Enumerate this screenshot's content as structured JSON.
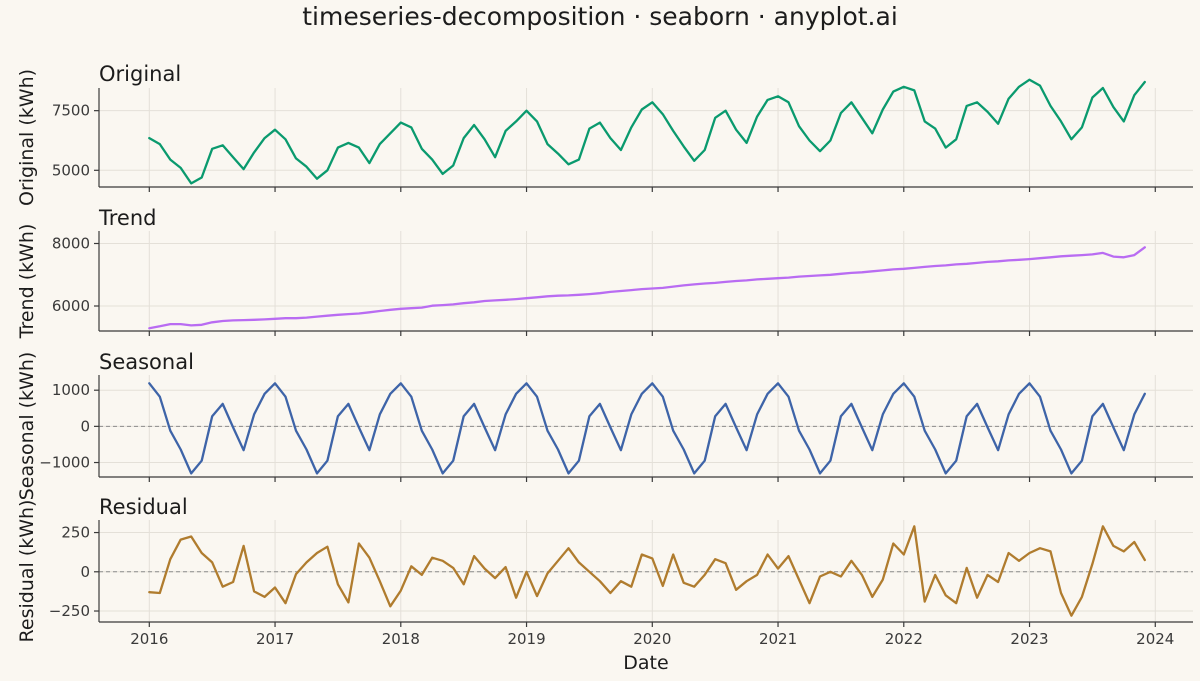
{
  "title": "timeseries-decomposition · seaborn · anyplot.ai",
  "chart_data": {
    "type": "line",
    "xlabel": "Date",
    "x": [
      "2016-01",
      "2016-02",
      "2016-03",
      "2016-04",
      "2016-05",
      "2016-06",
      "2016-07",
      "2016-08",
      "2016-09",
      "2016-10",
      "2016-11",
      "2016-12",
      "2017-01",
      "2017-02",
      "2017-03",
      "2017-04",
      "2017-05",
      "2017-06",
      "2017-07",
      "2017-08",
      "2017-09",
      "2017-10",
      "2017-11",
      "2017-12",
      "2018-01",
      "2018-02",
      "2018-03",
      "2018-04",
      "2018-05",
      "2018-06",
      "2018-07",
      "2018-08",
      "2018-09",
      "2018-10",
      "2018-11",
      "2018-12",
      "2019-01",
      "2019-02",
      "2019-03",
      "2019-04",
      "2019-05",
      "2019-06",
      "2019-07",
      "2019-08",
      "2019-09",
      "2019-10",
      "2019-11",
      "2019-12",
      "2020-01",
      "2020-02",
      "2020-03",
      "2020-04",
      "2020-05",
      "2020-06",
      "2020-07",
      "2020-08",
      "2020-09",
      "2020-10",
      "2020-11",
      "2020-12",
      "2021-01",
      "2021-02",
      "2021-03",
      "2021-04",
      "2021-05",
      "2021-06",
      "2021-07",
      "2021-08",
      "2021-09",
      "2021-10",
      "2021-11",
      "2021-12",
      "2022-01",
      "2022-02",
      "2022-03",
      "2022-04",
      "2022-05",
      "2022-06",
      "2022-07",
      "2022-08",
      "2022-09",
      "2022-10",
      "2022-11",
      "2022-12",
      "2023-01",
      "2023-02",
      "2023-03",
      "2023-04",
      "2023-05",
      "2023-06",
      "2023-07",
      "2023-08",
      "2023-09",
      "2023-10",
      "2023-11",
      "2023-12"
    ],
    "xticks": [
      "2016",
      "2017",
      "2018",
      "2019",
      "2020",
      "2021",
      "2022",
      "2023",
      "2024"
    ],
    "panels": [
      {
        "key": "original",
        "title": "Original",
        "ylabel": "Original (kWh)",
        "color": "#0a9a6e",
        "ylim": [
          4300,
          8450
        ],
        "yticks": [
          5000,
          7500
        ],
        "yticklabels": [
          "5000",
          "7500"
        ],
        "zero_line": false,
        "values": [
          6350,
          6100,
          5450,
          5100,
          4450,
          4700,
          5900,
          6050,
          5550,
          5050,
          5750,
          6350,
          6700,
          6300,
          5500,
          5150,
          4650,
          5000,
          5950,
          6150,
          5950,
          5300,
          6100,
          6550,
          7000,
          6800,
          5900,
          5450,
          4850,
          5200,
          6350,
          6900,
          6300,
          5550,
          6650,
          7050,
          7500,
          7050,
          6100,
          5700,
          5250,
          5450,
          6750,
          7000,
          6350,
          5850,
          6800,
          7550,
          7850,
          7350,
          6650,
          6000,
          5400,
          5850,
          7200,
          7500,
          6700,
          6150,
          7250,
          7950,
          8100,
          7850,
          6850,
          6250,
          5800,
          6250,
          7400,
          7850,
          7200,
          6550,
          7550,
          8300,
          8500,
          8350,
          7050,
          6750,
          5950,
          6300,
          7700,
          7850,
          7450,
          6950,
          8000,
          8500,
          8800,
          8550,
          7700,
          7050,
          6300,
          6800,
          8050,
          8450,
          7650,
          7050,
          8150,
          8700
        ]
      },
      {
        "key": "trend",
        "title": "Trend",
        "ylabel": "Trend (kWh)",
        "color": "#b96cf2",
        "ylim": [
          5200,
          8400
        ],
        "yticks": [
          6000,
          8000
        ],
        "yticklabels": [
          "6000",
          "8000"
        ],
        "zero_line": false,
        "values": [
          5290,
          5350,
          5420,
          5420,
          5380,
          5400,
          5480,
          5520,
          5540,
          5550,
          5560,
          5570,
          5590,
          5610,
          5610,
          5630,
          5660,
          5690,
          5720,
          5740,
          5760,
          5800,
          5840,
          5880,
          5910,
          5930,
          5950,
          6010,
          6030,
          6050,
          6090,
          6120,
          6160,
          6180,
          6200,
          6220,
          6250,
          6280,
          6310,
          6330,
          6340,
          6360,
          6380,
          6410,
          6450,
          6480,
          6510,
          6540,
          6560,
          6580,
          6620,
          6660,
          6690,
          6720,
          6740,
          6770,
          6800,
          6820,
          6850,
          6870,
          6890,
          6910,
          6940,
          6960,
          6980,
          7000,
          7030,
          7060,
          7080,
          7110,
          7140,
          7170,
          7190,
          7220,
          7250,
          7280,
          7300,
          7330,
          7350,
          7380,
          7410,
          7430,
          7460,
          7480,
          7500,
          7530,
          7560,
          7590,
          7610,
          7630,
          7650,
          7700,
          7580,
          7560,
          7630,
          7880
        ]
      },
      {
        "key": "seasonal",
        "title": "Seasonal",
        "ylabel": "Seasonal (kWh)",
        "color": "#3e64a8",
        "ylim": [
          -1400,
          1420
        ],
        "yticks": [
          -1000,
          0,
          1000
        ],
        "yticklabels": [
          "−1000",
          "0",
          "1000"
        ],
        "zero_line": true,
        "values": [
          1190,
          820,
          -120,
          -640,
          -1300,
          -950,
          280,
          620,
          -30,
          -660,
          330,
          900,
          1190,
          820,
          -120,
          -640,
          -1300,
          -950,
          280,
          620,
          -30,
          -660,
          330,
          900,
          1190,
          820,
          -120,
          -640,
          -1300,
          -950,
          280,
          620,
          -30,
          -660,
          330,
          900,
          1190,
          820,
          -120,
          -640,
          -1300,
          -950,
          280,
          620,
          -30,
          -660,
          330,
          900,
          1190,
          820,
          -120,
          -640,
          -1300,
          -950,
          280,
          620,
          -30,
          -660,
          330,
          900,
          1190,
          820,
          -120,
          -640,
          -1300,
          -950,
          280,
          620,
          -30,
          -660,
          330,
          900,
          1190,
          820,
          -120,
          -640,
          -1300,
          -950,
          280,
          620,
          -30,
          -660,
          330,
          900,
          1190,
          820,
          -120,
          -640,
          -1300,
          -950,
          280,
          620,
          -30,
          -660,
          330,
          900
        ]
      },
      {
        "key": "residual",
        "title": "Residual",
        "ylabel": "Residual (kWh)",
        "color": "#b07c2e",
        "ylim": [
          -320,
          330
        ],
        "yticks": [
          -250,
          0,
          250
        ],
        "yticklabels": [
          "−250",
          "0",
          "250"
        ],
        "zero_line": true,
        "values": [
          -130,
          -135,
          80,
          205,
          225,
          120,
          60,
          -95,
          -65,
          165,
          -125,
          -160,
          -100,
          -200,
          -15,
          60,
          120,
          160,
          -80,
          -195,
          180,
          90,
          -60,
          -220,
          -120,
          35,
          -20,
          90,
          70,
          25,
          -80,
          100,
          20,
          -40,
          30,
          -165,
          0,
          -155,
          -10,
          70,
          150,
          60,
          0,
          -60,
          -135,
          -60,
          -95,
          110,
          85,
          -90,
          110,
          -70,
          -95,
          -20,
          80,
          55,
          -115,
          -60,
          -20,
          110,
          20,
          100,
          -50,
          -200,
          -30,
          0,
          -30,
          70,
          -20,
          -160,
          -50,
          180,
          110,
          290,
          -190,
          -20,
          -150,
          -200,
          25,
          -165,
          -20,
          -65,
          120,
          70,
          120,
          150,
          130,
          -135,
          -280,
          -160,
          50,
          290,
          165,
          130,
          190,
          75
        ]
      }
    ]
  }
}
